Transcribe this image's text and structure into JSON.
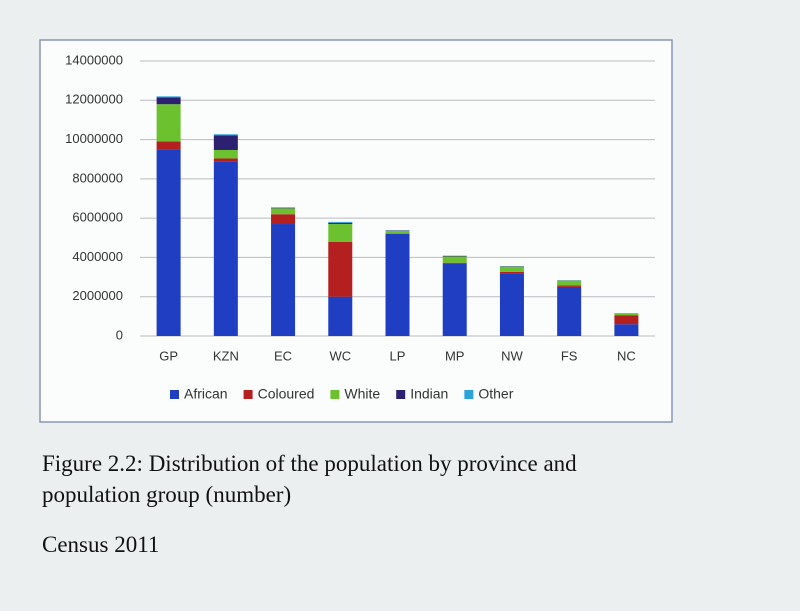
{
  "chart_data": {
    "type": "stacked_bar",
    "categories": [
      "GP",
      "KZN",
      "EC",
      "WC",
      "LP",
      "MP",
      "NW",
      "FS",
      "NC"
    ],
    "series": [
      {
        "name": "African",
        "color": "#1f3ec2",
        "values": [
          9500000,
          8900000,
          5700000,
          2000000,
          5200000,
          3700000,
          3200000,
          2500000,
          600000
        ]
      },
      {
        "name": "Coloured",
        "color": "#b3201f",
        "values": [
          400000,
          140000,
          500000,
          2800000,
          15000,
          30000,
          70000,
          80000,
          460000
        ]
      },
      {
        "name": "White",
        "color": "#6cc22e",
        "values": [
          1900000,
          430000,
          300000,
          900000,
          140000,
          320000,
          260000,
          240000,
          80000
        ]
      },
      {
        "name": "Indian",
        "color": "#2b2170",
        "values": [
          350000,
          750000,
          30000,
          60000,
          20000,
          30000,
          20000,
          10000,
          10000
        ]
      },
      {
        "name": "Other",
        "color": "#2ba3da",
        "values": [
          50000,
          50000,
          20000,
          50000,
          10000,
          10000,
          10000,
          10000,
          10000
        ]
      }
    ],
    "ylim": [
      0,
      14000000
    ],
    "yticks": [
      0,
      2000000,
      4000000,
      6000000,
      8000000,
      10000000,
      12000000,
      14000000
    ],
    "grid": true,
    "legend": "bottom"
  },
  "caption": "Figure 2.2: Distribution of the population by province and population group (number)",
  "source": "Census 2011"
}
